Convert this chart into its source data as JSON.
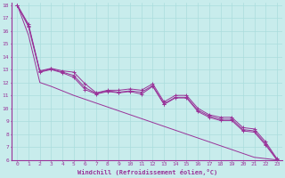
{
  "xlabel": "Windchill (Refroidissement éolien,°C)",
  "bg_color": "#c8ecec",
  "line_color": "#993399",
  "grid_color": "#aadddd",
  "xlim": [
    -0.5,
    23.5
  ],
  "ylim": [
    6,
    18.2
  ],
  "xticks": [
    0,
    1,
    2,
    3,
    4,
    5,
    6,
    7,
    8,
    9,
    10,
    11,
    12,
    13,
    14,
    15,
    16,
    17,
    18,
    19,
    20,
    21,
    22,
    23
  ],
  "yticks": [
    6,
    7,
    8,
    9,
    10,
    11,
    12,
    13,
    14,
    15,
    16,
    17,
    18
  ],
  "series": [
    [
      18.0,
      16.5,
      12.9,
      13.1,
      12.9,
      12.8,
      11.9,
      11.2,
      11.4,
      11.4,
      11.5,
      11.4,
      11.9,
      10.5,
      11.0,
      11.0,
      10.0,
      9.5,
      9.3,
      9.3,
      8.5,
      8.4,
      7.4,
      6.1
    ],
    [
      18.0,
      16.4,
      12.85,
      13.05,
      12.8,
      12.55,
      11.6,
      11.15,
      11.35,
      11.25,
      11.35,
      11.25,
      11.75,
      10.35,
      10.85,
      10.85,
      9.85,
      9.4,
      9.15,
      9.15,
      8.35,
      8.25,
      7.25,
      6.05
    ],
    [
      18.0,
      16.3,
      12.8,
      13.0,
      12.75,
      12.4,
      11.45,
      11.1,
      11.3,
      11.2,
      11.3,
      11.1,
      11.7,
      10.3,
      10.8,
      10.8,
      9.75,
      9.3,
      9.05,
      9.05,
      8.25,
      8.15,
      7.15,
      6.0
    ],
    [
      18.0,
      15.65,
      12.0,
      11.7,
      11.35,
      11.0,
      10.7,
      10.4,
      10.1,
      9.8,
      9.5,
      9.2,
      8.9,
      8.6,
      8.3,
      8.0,
      7.7,
      7.4,
      7.1,
      6.8,
      6.5,
      6.2,
      6.1,
      6.0
    ]
  ]
}
